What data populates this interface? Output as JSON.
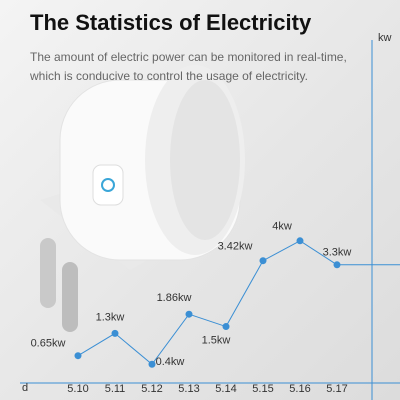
{
  "chart_data": {
    "type": "line",
    "title": "The Statistics of Electricity",
    "subtitle": "The amount of electric power can be monitored in real-time, which is conducive to control the usage of electricity.",
    "y_label": "kw",
    "x_label": "d",
    "categories": [
      "5.10",
      "5.11",
      "5.12",
      "5.13",
      "5.14",
      "5.15",
      "5.16",
      "5.17"
    ],
    "values": [
      0.65,
      1.3,
      0.4,
      1.86,
      1.5,
      3.42,
      4,
      3.3
    ],
    "value_labels": [
      "0.65kw",
      "1.3kw",
      "0.4kw",
      "1.86kw",
      "1.5kw",
      "3.42kw",
      "4kw",
      "3.3kw"
    ],
    "color": "#3b8fd4",
    "ylim": [
      0,
      10
    ]
  }
}
